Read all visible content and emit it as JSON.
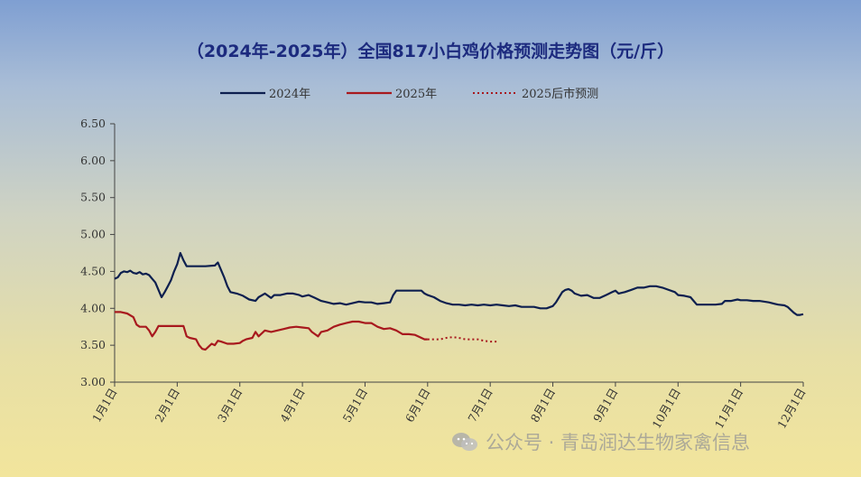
{
  "chart_data": {
    "type": "line",
    "title": "（2024年-2025年）全国817小白鸡价格预测走势图（元/斤）",
    "xlabel": "",
    "ylabel": "",
    "ylim": [
      3.0,
      6.5
    ],
    "yticks": [
      "6.50",
      "6.00",
      "5.50",
      "5.00",
      "4.50",
      "4.00",
      "3.50",
      "3.00"
    ],
    "xlim": [
      1,
      12
    ],
    "xticks": [
      "1月1日",
      "2月1日",
      "3月1日",
      "4月1日",
      "5月1日",
      "6月1日",
      "7月1日",
      "8月1日",
      "9月1日",
      "10月1日",
      "11月1日",
      "12月1日"
    ],
    "legend_position": "top",
    "grid": false,
    "series": [
      {
        "name": "2024年",
        "color": "#0d1f4f",
        "style": "solid",
        "points": [
          [
            1.0,
            4.4
          ],
          [
            1.05,
            4.42
          ],
          [
            1.1,
            4.48
          ],
          [
            1.15,
            4.5
          ],
          [
            1.2,
            4.49
          ],
          [
            1.25,
            4.51
          ],
          [
            1.3,
            4.48
          ],
          [
            1.35,
            4.47
          ],
          [
            1.4,
            4.49
          ],
          [
            1.45,
            4.46
          ],
          [
            1.5,
            4.47
          ],
          [
            1.55,
            4.45
          ],
          [
            1.6,
            4.4
          ],
          [
            1.65,
            4.35
          ],
          [
            1.7,
            4.25
          ],
          [
            1.75,
            4.15
          ],
          [
            1.8,
            4.22
          ],
          [
            1.85,
            4.3
          ],
          [
            1.9,
            4.38
          ],
          [
            1.95,
            4.5
          ],
          [
            2.0,
            4.6
          ],
          [
            2.05,
            4.75
          ],
          [
            2.1,
            4.65
          ],
          [
            2.15,
            4.57
          ],
          [
            2.3,
            4.57
          ],
          [
            2.45,
            4.57
          ],
          [
            2.6,
            4.58
          ],
          [
            2.65,
            4.62
          ],
          [
            2.7,
            4.52
          ],
          [
            2.75,
            4.42
          ],
          [
            2.8,
            4.3
          ],
          [
            2.85,
            4.22
          ],
          [
            2.95,
            4.2
          ],
          [
            3.05,
            4.17
          ],
          [
            3.15,
            4.12
          ],
          [
            3.25,
            4.1
          ],
          [
            3.3,
            4.15
          ],
          [
            3.4,
            4.2
          ],
          [
            3.5,
            4.14
          ],
          [
            3.55,
            4.18
          ],
          [
            3.65,
            4.18
          ],
          [
            3.75,
            4.2
          ],
          [
            3.85,
            4.2
          ],
          [
            3.95,
            4.18
          ],
          [
            4.0,
            4.16
          ],
          [
            4.1,
            4.18
          ],
          [
            4.2,
            4.14
          ],
          [
            4.3,
            4.1
          ],
          [
            4.4,
            4.08
          ],
          [
            4.5,
            4.06
          ],
          [
            4.6,
            4.07
          ],
          [
            4.7,
            4.05
          ],
          [
            4.8,
            4.07
          ],
          [
            4.9,
            4.09
          ],
          [
            5.0,
            4.08
          ],
          [
            5.1,
            4.08
          ],
          [
            5.2,
            4.06
          ],
          [
            5.3,
            4.07
          ],
          [
            5.4,
            4.08
          ],
          [
            5.45,
            4.18
          ],
          [
            5.5,
            4.24
          ],
          [
            5.6,
            4.24
          ],
          [
            5.7,
            4.24
          ],
          [
            5.8,
            4.24
          ],
          [
            5.9,
            4.24
          ],
          [
            5.95,
            4.2
          ],
          [
            6.0,
            4.18
          ],
          [
            6.1,
            4.15
          ],
          [
            6.2,
            4.1
          ],
          [
            6.3,
            4.07
          ],
          [
            6.4,
            4.05
          ],
          [
            6.5,
            4.05
          ],
          [
            6.6,
            4.04
          ],
          [
            6.7,
            4.05
          ],
          [
            6.8,
            4.04
          ],
          [
            6.9,
            4.05
          ],
          [
            7.0,
            4.04
          ],
          [
            7.1,
            4.05
          ],
          [
            7.2,
            4.04
          ],
          [
            7.3,
            4.03
          ],
          [
            7.4,
            4.04
          ],
          [
            7.5,
            4.02
          ],
          [
            7.6,
            4.02
          ],
          [
            7.7,
            4.02
          ],
          [
            7.8,
            4.0
          ],
          [
            7.9,
            4.0
          ],
          [
            8.0,
            4.03
          ],
          [
            8.05,
            4.08
          ],
          [
            8.1,
            4.15
          ],
          [
            8.15,
            4.22
          ],
          [
            8.2,
            4.25
          ],
          [
            8.25,
            4.26
          ],
          [
            8.3,
            4.24
          ],
          [
            8.35,
            4.2
          ],
          [
            8.45,
            4.17
          ],
          [
            8.55,
            4.18
          ],
          [
            8.65,
            4.14
          ],
          [
            8.75,
            4.14
          ],
          [
            8.85,
            4.18
          ],
          [
            8.95,
            4.22
          ],
          [
            9.0,
            4.24
          ],
          [
            9.05,
            4.2
          ],
          [
            9.15,
            4.22
          ],
          [
            9.25,
            4.25
          ],
          [
            9.35,
            4.28
          ],
          [
            9.45,
            4.28
          ],
          [
            9.55,
            4.3
          ],
          [
            9.65,
            4.3
          ],
          [
            9.75,
            4.28
          ],
          [
            9.85,
            4.25
          ],
          [
            9.95,
            4.22
          ],
          [
            10.0,
            4.18
          ],
          [
            10.1,
            4.17
          ],
          [
            10.2,
            4.15
          ],
          [
            10.25,
            4.1
          ],
          [
            10.3,
            4.05
          ],
          [
            10.45,
            4.05
          ],
          [
            10.6,
            4.05
          ],
          [
            10.7,
            4.06
          ],
          [
            10.75,
            4.1
          ],
          [
            10.85,
            4.1
          ],
          [
            10.95,
            4.12
          ],
          [
            11.0,
            4.11
          ],
          [
            11.1,
            4.11
          ],
          [
            11.2,
            4.1
          ],
          [
            11.3,
            4.1
          ],
          [
            11.45,
            4.08
          ],
          [
            11.55,
            4.06
          ],
          [
            11.6,
            4.05
          ],
          [
            11.7,
            4.04
          ],
          [
            11.75,
            4.02
          ],
          [
            11.8,
            3.98
          ],
          [
            11.85,
            3.94
          ],
          [
            11.9,
            3.91
          ],
          [
            11.95,
            3.91
          ],
          [
            12.0,
            3.92
          ]
        ]
      },
      {
        "name": "2025年",
        "color": "#a8191e",
        "style": "solid",
        "points": [
          [
            1.0,
            3.95
          ],
          [
            1.1,
            3.95
          ],
          [
            1.2,
            3.93
          ],
          [
            1.3,
            3.88
          ],
          [
            1.35,
            3.78
          ],
          [
            1.4,
            3.75
          ],
          [
            1.5,
            3.75
          ],
          [
            1.55,
            3.7
          ],
          [
            1.6,
            3.62
          ],
          [
            1.65,
            3.68
          ],
          [
            1.7,
            3.76
          ],
          [
            1.8,
            3.76
          ],
          [
            1.9,
            3.76
          ],
          [
            2.0,
            3.76
          ],
          [
            2.1,
            3.76
          ],
          [
            2.15,
            3.62
          ],
          [
            2.2,
            3.6
          ],
          [
            2.3,
            3.58
          ],
          [
            2.35,
            3.5
          ],
          [
            2.4,
            3.45
          ],
          [
            2.45,
            3.44
          ],
          [
            2.5,
            3.48
          ],
          [
            2.55,
            3.52
          ],
          [
            2.6,
            3.5
          ],
          [
            2.65,
            3.56
          ],
          [
            2.7,
            3.55
          ],
          [
            2.8,
            3.52
          ],
          [
            2.9,
            3.52
          ],
          [
            3.0,
            3.53
          ],
          [
            3.05,
            3.56
          ],
          [
            3.1,
            3.58
          ],
          [
            3.2,
            3.6
          ],
          [
            3.25,
            3.68
          ],
          [
            3.3,
            3.62
          ],
          [
            3.4,
            3.7
          ],
          [
            3.5,
            3.68
          ],
          [
            3.6,
            3.7
          ],
          [
            3.7,
            3.72
          ],
          [
            3.8,
            3.74
          ],
          [
            3.9,
            3.75
          ],
          [
            4.0,
            3.74
          ],
          [
            4.1,
            3.73
          ],
          [
            4.15,
            3.68
          ],
          [
            4.2,
            3.65
          ],
          [
            4.25,
            3.62
          ],
          [
            4.3,
            3.68
          ],
          [
            4.4,
            3.7
          ],
          [
            4.5,
            3.75
          ],
          [
            4.6,
            3.78
          ],
          [
            4.7,
            3.8
          ],
          [
            4.8,
            3.82
          ],
          [
            4.9,
            3.82
          ],
          [
            5.0,
            3.8
          ],
          [
            5.1,
            3.8
          ],
          [
            5.2,
            3.75
          ],
          [
            5.3,
            3.72
          ],
          [
            5.4,
            3.73
          ],
          [
            5.5,
            3.7
          ],
          [
            5.6,
            3.65
          ],
          [
            5.7,
            3.65
          ],
          [
            5.8,
            3.64
          ],
          [
            5.9,
            3.6
          ],
          [
            5.95,
            3.58
          ],
          [
            6.0,
            3.58
          ]
        ]
      },
      {
        "name": "2025后市预测",
        "color": "#a8191e",
        "style": "dotted",
        "points": [
          [
            6.0,
            3.58
          ],
          [
            6.1,
            3.58
          ],
          [
            6.2,
            3.58
          ],
          [
            6.3,
            3.6
          ],
          [
            6.4,
            3.61
          ],
          [
            6.5,
            3.6
          ],
          [
            6.6,
            3.58
          ],
          [
            6.7,
            3.58
          ],
          [
            6.8,
            3.58
          ],
          [
            6.9,
            3.56
          ],
          [
            7.0,
            3.55
          ],
          [
            7.1,
            3.55
          ]
        ]
      }
    ],
    "annotations": []
  },
  "watermark": {
    "icon": "wechat-icon",
    "text": "公众号 · 青岛润达生物家禽信息"
  }
}
